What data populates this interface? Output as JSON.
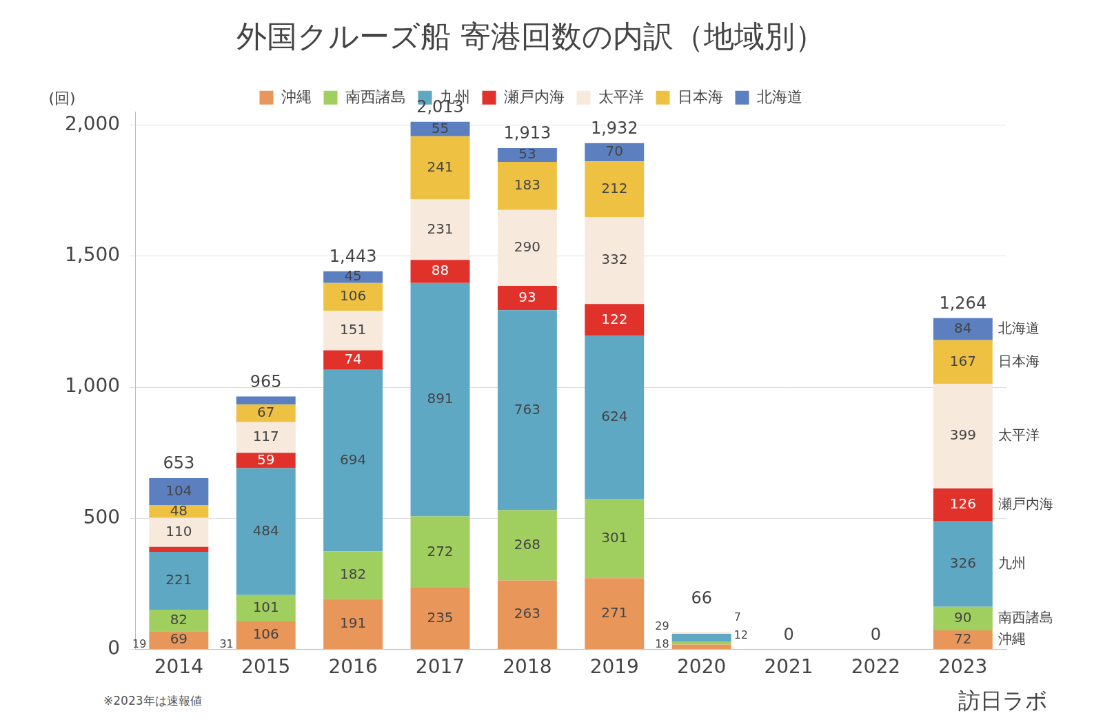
{
  "chart_data": {
    "type": "bar",
    "title": "外国クルーズ船 寄港回数の内訳（地域別）",
    "y_label": "(回)",
    "note": "※2023年は速報値",
    "source": "訪日ラボ",
    "categories": [
      "2014",
      "2015",
      "2016",
      "2017",
      "2018",
      "2019",
      "2020",
      "2021",
      "2022",
      "2023"
    ],
    "series": [
      {
        "name": "沖縄",
        "color": "#e8965a",
        "values": [
          69,
          106,
          191,
          235,
          263,
          271,
          18,
          0,
          0,
          72
        ]
      },
      {
        "name": "南西諸島",
        "color": "#a1cf5f",
        "values": [
          82,
          101,
          182,
          272,
          268,
          301,
          12,
          0,
          0,
          90
        ]
      },
      {
        "name": "九州",
        "color": "#5fa8c4",
        "values": [
          221,
          484,
          694,
          891,
          763,
          624,
          29,
          0,
          0,
          326
        ]
      },
      {
        "name": "瀬戸内海",
        "color": "#e0312a",
        "values": [
          19,
          59,
          74,
          88,
          93,
          122,
          0,
          0,
          0,
          126
        ]
      },
      {
        "name": "太平洋",
        "color": "#f7e9dc",
        "values": [
          110,
          117,
          151,
          231,
          290,
          332,
          7,
          0,
          0,
          399
        ]
      },
      {
        "name": "日本海",
        "color": "#eec143",
        "values": [
          48,
          67,
          106,
          241,
          183,
          212,
          0,
          0,
          0,
          167
        ]
      },
      {
        "name": "北海道",
        "color": "#5b7fbf",
        "values": [
          104,
          31,
          45,
          55,
          53,
          70,
          0,
          0,
          0,
          84
        ]
      }
    ],
    "totals": [
      653,
      965,
      1443,
      2013,
      1913,
      1932,
      66,
      0,
      0,
      1264
    ],
    "total_labels": [
      "653",
      "965",
      "1,443",
      "2,013",
      "1,913",
      "1,932",
      "66",
      "0",
      "0",
      "1,264"
    ],
    "ylim": [
      0,
      2050
    ],
    "yticks": [
      0,
      500,
      {
        "value": 1000,
        "label": "1,000"
      },
      {
        "value": 1500,
        "label": "1,500"
      },
      {
        "value": 2000,
        "label": "2,000"
      }
    ],
    "stacked": true,
    "data_labels": true,
    "grid": true,
    "legend": "top"
  }
}
